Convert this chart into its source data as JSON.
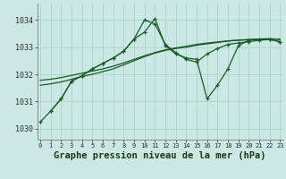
{
  "title": "Graphe pression niveau de la mer (hPa)",
  "bg_color": "#cce8e4",
  "grid_color": "#a8d4cc",
  "line_color": "#1a5c28",
  "xlim": [
    -0.3,
    23.3
  ],
  "ylim": [
    1029.6,
    1034.6
  ],
  "yticks": [
    1030,
    1031,
    1032,
    1033,
    1034
  ],
  "xticks": [
    0,
    1,
    2,
    3,
    4,
    5,
    6,
    7,
    8,
    9,
    10,
    11,
    12,
    13,
    14,
    15,
    16,
    17,
    18,
    19,
    20,
    21,
    22,
    23
  ],
  "line1_x": [
    0,
    1,
    2,
    3,
    4,
    5,
    6,
    7,
    8,
    9,
    10,
    11,
    12,
    13,
    14,
    15,
    16,
    17,
    18,
    19,
    20,
    21,
    22,
    23
  ],
  "line1_y": [
    1030.25,
    1030.65,
    1031.1,
    1031.75,
    1031.95,
    1032.2,
    1032.4,
    1032.6,
    1032.85,
    1033.3,
    1034.0,
    1033.85,
    1033.1,
    1032.8,
    1032.55,
    1032.45,
    1032.75,
    1032.95,
    1033.1,
    1033.15,
    1033.2,
    1033.25,
    1033.28,
    1033.2
  ],
  "line2_x": [
    1,
    2,
    3,
    4,
    5,
    6,
    7,
    8,
    9,
    10,
    11,
    12,
    13,
    14,
    15,
    16,
    17,
    18,
    19,
    20,
    21,
    22,
    23
  ],
  "line2_y": [
    1030.65,
    1031.1,
    1031.75,
    1031.95,
    1032.2,
    1032.4,
    1032.6,
    1032.85,
    1033.3,
    1033.55,
    1034.05,
    1033.05,
    1032.75,
    1032.6,
    1032.55,
    1031.1,
    1031.6,
    1032.2,
    1033.05,
    1033.25,
    1033.28,
    1033.28,
    1033.2
  ],
  "line3_x": [
    0,
    1,
    2,
    3,
    4,
    5,
    6,
    7,
    8,
    9,
    10,
    11,
    12,
    13,
    14,
    15,
    16,
    17,
    18,
    19,
    20,
    21,
    22,
    23
  ],
  "line3_y": [
    1031.6,
    1031.65,
    1031.72,
    1031.82,
    1031.92,
    1032.0,
    1032.1,
    1032.2,
    1032.35,
    1032.5,
    1032.65,
    1032.78,
    1032.88,
    1032.95,
    1033.0,
    1033.07,
    1033.12,
    1033.17,
    1033.22,
    1033.25,
    1033.27,
    1033.29,
    1033.3,
    1033.28
  ],
  "line4_x": [
    0,
    1,
    2,
    3,
    4,
    5,
    6,
    7,
    8,
    9,
    10,
    11,
    12,
    13,
    14,
    15,
    16,
    17,
    18,
    19,
    20,
    21,
    22,
    23
  ],
  "line4_y": [
    1031.78,
    1031.82,
    1031.88,
    1031.96,
    1032.04,
    1032.12,
    1032.2,
    1032.3,
    1032.42,
    1032.55,
    1032.68,
    1032.8,
    1032.9,
    1032.97,
    1033.03,
    1033.1,
    1033.15,
    1033.19,
    1033.23,
    1033.26,
    1033.28,
    1033.3,
    1033.31,
    1033.29
  ]
}
